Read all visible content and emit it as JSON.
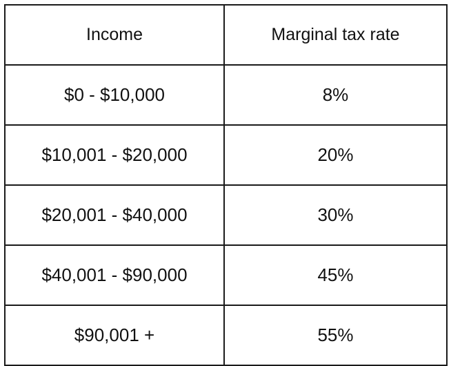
{
  "table": {
    "headers": [
      "Income",
      "Marginal tax rate"
    ],
    "rows": [
      [
        "$0 - $10,000",
        "8%"
      ],
      [
        "$10,001 - $20,000",
        "20%"
      ],
      [
        "$20,001 - $40,000",
        "30%"
      ],
      [
        "$40,001 - $90,000",
        "45%"
      ],
      [
        "$90,001 +",
        "55%"
      ]
    ]
  }
}
